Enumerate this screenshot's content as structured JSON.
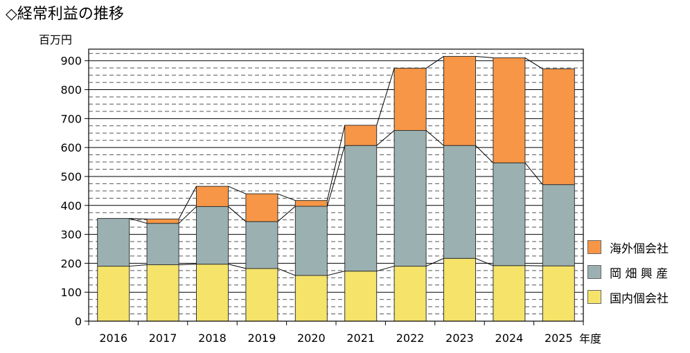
{
  "title": "◇経常利益の推移",
  "unit": "百万円",
  "xsuffix": "年度",
  "colors": {
    "overseas": "#f79646",
    "okahata": "#9bb1b1",
    "domestic": "#f5e36a",
    "frame": "#000000"
  },
  "chart_data": {
    "type": "bar",
    "stacked": true,
    "title": "◇経常利益の推移",
    "ylabel": "百万円",
    "xlabel": "年度",
    "ylim": [
      0,
      940
    ],
    "yticks": [
      0,
      100,
      200,
      300,
      400,
      500,
      600,
      700,
      800,
      900
    ],
    "grid": true,
    "categories": [
      "2016",
      "2017",
      "2018",
      "2019",
      "2020",
      "2021",
      "2022",
      "2023",
      "2024",
      "2025"
    ],
    "series": [
      {
        "name": "国内個会社",
        "values": [
          190,
          195,
          197,
          182,
          158,
          173,
          190,
          217,
          192,
          191
        ]
      },
      {
        "name": "岡 畑 興 産",
        "values": [
          165,
          143,
          199,
          162,
          239,
          434,
          469,
          390,
          355,
          281
        ]
      },
      {
        "name": "海外個会社",
        "values": [
          0,
          15,
          70,
          96,
          20,
          70,
          215,
          308,
          363,
          400
        ]
      }
    ],
    "legend": "right"
  }
}
